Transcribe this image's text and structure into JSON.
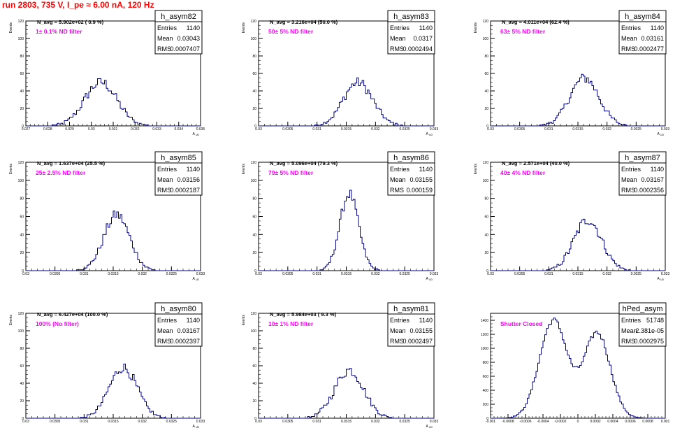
{
  "page": {
    "title": "run 2803,   735 V, I_pe ≈ 6.00 nA, 120 Hz",
    "title_color": "#ff0000"
  },
  "style": {
    "hist_color": "#000080",
    "filter_label_color": "#ff00ff",
    "axis_color": "#000000"
  },
  "chart_data": [
    {
      "type": "histogram",
      "name": "h_asym82",
      "n_avg": "N_avg = 5.902e+02 ( 0.9 %)",
      "filter": "1± 0.1% ND filter",
      "stats": {
        "Entries": "1140",
        "Mean": "0.03043",
        "RMS": "0.0007407"
      },
      "xlabel": "A_UD",
      "ylabel": "Events",
      "xlim": [
        0.027,
        0.035
      ],
      "ylim": [
        0,
        120
      ],
      "xticks": [
        "0.027",
        "0.028",
        "0.029",
        "0.03",
        "0.031",
        "0.032",
        "0.033",
        "0.034",
        "0.035"
      ],
      "yticks": [
        "0",
        "20",
        "40",
        "60",
        "80",
        "100",
        "120"
      ],
      "shape": {
        "type": "gauss",
        "components": [
          {
            "mu": 0.03043,
            "sigma": 0.00074,
            "peak": 50
          }
        ],
        "noise": 6,
        "bins": 100
      }
    },
    {
      "type": "histogram",
      "name": "h_asym83",
      "n_avg": "N_avg = 3.216e+04 (50.0 %)",
      "filter": "50± 5% ND filter",
      "stats": {
        "Entries": "1140",
        "Mean": "0.0317",
        "RMS": "0.0002494"
      },
      "xlabel": "A_UD",
      "ylabel": "Events",
      "xlim": [
        0.03,
        0.033
      ],
      "ylim": [
        0,
        120
      ],
      "xticks": [
        "0.03",
        "0.0305",
        "0.031",
        "0.0315",
        "0.032",
        "0.0325",
        "0.033"
      ],
      "yticks": [
        "0",
        "20",
        "40",
        "60",
        "80",
        "100",
        "120"
      ],
      "shape": {
        "type": "gauss",
        "components": [
          {
            "mu": 0.0317,
            "sigma": 0.00025,
            "peak": 50
          }
        ],
        "noise": 6,
        "bins": 100
      }
    },
    {
      "type": "histogram",
      "name": "h_asym84",
      "n_avg": "N_avg = 4.011e+04 (62.4 %)",
      "filter": "63± 5% ND filter",
      "stats": {
        "Entries": "1140",
        "Mean": "0.03161",
        "RMS": "0.0002477"
      },
      "xlabel": "A_UD",
      "ylabel": "Events",
      "xlim": [
        0.03,
        0.033
      ],
      "ylim": [
        0,
        120
      ],
      "xticks": [
        "0.03",
        "0.0305",
        "0.031",
        "0.0315",
        "0.032",
        "0.0325",
        "0.033"
      ],
      "yticks": [
        "0",
        "20",
        "40",
        "60",
        "80",
        "100",
        "120"
      ],
      "shape": {
        "type": "gauss",
        "components": [
          {
            "mu": 0.03161,
            "sigma": 0.00025,
            "peak": 55
          }
        ],
        "noise": 6,
        "bins": 100
      }
    },
    {
      "type": "histogram",
      "name": "h_asym85",
      "n_avg": "N_avg = 1.637e+04 (25.5 %)",
      "filter": "25± 2.5% ND filter",
      "stats": {
        "Entries": "1140",
        "Mean": "0.03156",
        "RMS": "0.0002187"
      },
      "xlabel": "A_UD",
      "ylabel": "Events",
      "xlim": [
        0.03,
        0.033
      ],
      "ylim": [
        0,
        120
      ],
      "xticks": [
        "0.03",
        "0.0305",
        "0.031",
        "0.0315",
        "0.032",
        "0.0325",
        "0.033"
      ],
      "yticks": [
        "0",
        "20",
        "40",
        "60",
        "80",
        "100",
        "120"
      ],
      "shape": {
        "type": "gauss",
        "components": [
          {
            "mu": 0.03156,
            "sigma": 0.00022,
            "peak": 62
          }
        ],
        "noise": 6,
        "bins": 100
      }
    },
    {
      "type": "histogram",
      "name": "h_asym86",
      "n_avg": "N_avg = 5.096e+04 (79.3 %)",
      "filter": "79± 5% ND filter",
      "stats": {
        "Entries": "1140",
        "Mean": "0.03155",
        "RMS": "0.000159"
      },
      "xlabel": "A_UD",
      "ylabel": "Events",
      "xlim": [
        0.03,
        0.033
      ],
      "ylim": [
        0,
        120
      ],
      "xticks": [
        "0.03",
        "0.0305",
        "0.031",
        "0.0315",
        "0.032",
        "0.0325",
        "0.033"
      ],
      "yticks": [
        "0",
        "20",
        "40",
        "60",
        "80",
        "100",
        "120"
      ],
      "shape": {
        "type": "gauss",
        "components": [
          {
            "mu": 0.03155,
            "sigma": 0.00016,
            "peak": 85
          }
        ],
        "noise": 6,
        "bins": 100
      }
    },
    {
      "type": "histogram",
      "name": "h_asym87",
      "n_avg": "N_avg = 2.571e+04 (40.0 %)",
      "filter": "40± 4% ND filter",
      "stats": {
        "Entries": "1140",
        "Mean": "0.03167",
        "RMS": "0.0002356"
      },
      "xlabel": "A_UD",
      "ylabel": "Events",
      "xlim": [
        0.03,
        0.033
      ],
      "ylim": [
        0,
        120
      ],
      "xticks": [
        "0.03",
        "0.0305",
        "0.031",
        "0.0315",
        "0.032",
        "0.0325",
        "0.033"
      ],
      "yticks": [
        "0",
        "20",
        "40",
        "60",
        "80",
        "100",
        "120"
      ],
      "shape": {
        "type": "gauss",
        "components": [
          {
            "mu": 0.03167,
            "sigma": 0.00024,
            "peak": 56
          }
        ],
        "noise": 6,
        "bins": 100
      }
    },
    {
      "type": "histogram",
      "name": "h_asym80",
      "n_avg": "N_avg = 6.427e+04 (100.0 %)",
      "filter": "100% (No filter)",
      "stats": {
        "Entries": "1140",
        "Mean": "0.03167",
        "RMS": "0.0002397"
      },
      "xlabel": "A_UD",
      "ylabel": "Events",
      "xlim": [
        0.03,
        0.033
      ],
      "ylim": [
        0,
        120
      ],
      "xticks": [
        "0.03",
        "0.0305",
        "0.031",
        "0.0315",
        "0.032",
        "0.0325",
        "0.033"
      ],
      "yticks": [
        "0",
        "20",
        "40",
        "60",
        "80",
        "100",
        "120"
      ],
      "shape": {
        "type": "gauss",
        "components": [
          {
            "mu": 0.03167,
            "sigma": 0.00024,
            "peak": 58
          }
        ],
        "noise": 6,
        "bins": 100
      }
    },
    {
      "type": "histogram",
      "name": "h_asym81",
      "n_avg": "N_avg = 5.984e+03 ( 9.3 %)",
      "filter": "10± 1% ND filter",
      "stats": {
        "Entries": "1140",
        "Mean": "0.03155",
        "RMS": "0.0002497"
      },
      "xlabel": "A_UD",
      "ylabel": "Events",
      "xlim": [
        0.03,
        0.033
      ],
      "ylim": [
        0,
        120
      ],
      "xticks": [
        "0.03",
        "0.0305",
        "0.031",
        "0.0315",
        "0.032",
        "0.0325",
        "0.033"
      ],
      "yticks": [
        "0",
        "20",
        "40",
        "60",
        "80",
        "100",
        "120"
      ],
      "shape": {
        "type": "gauss",
        "components": [
          {
            "mu": 0.03155,
            "sigma": 0.00025,
            "peak": 55
          }
        ],
        "noise": 6,
        "bins": 100
      }
    },
    {
      "type": "histogram",
      "name": "hPed_asym",
      "n_avg": "",
      "filter": "Shutter Closed",
      "stats": {
        "Entries": "51748",
        "Mean": "-2.381e-05",
        "RMS": "0.0002975"
      },
      "xlabel": "",
      "ylabel": "",
      "xlim": [
        -0.001,
        0.001
      ],
      "ylim": [
        0,
        1500
      ],
      "xticks": [
        "-0.001",
        "-0.0008",
        "-0.0006",
        "-0.0004",
        "-0.0002",
        "0",
        "0.0002",
        "0.0004",
        "0.0006",
        "0.0008",
        "0.001"
      ],
      "yticks": [
        "0",
        "200",
        "400",
        "600",
        "800",
        "1000",
        "1200",
        "1400"
      ],
      "shape": {
        "type": "gauss",
        "components": [
          {
            "mu": -0.00028,
            "sigma": 0.00016,
            "peak": 1400
          },
          {
            "mu": 0.00022,
            "sigma": 0.00015,
            "peak": 1220
          }
        ],
        "noise": 40,
        "bins": 100
      }
    }
  ]
}
